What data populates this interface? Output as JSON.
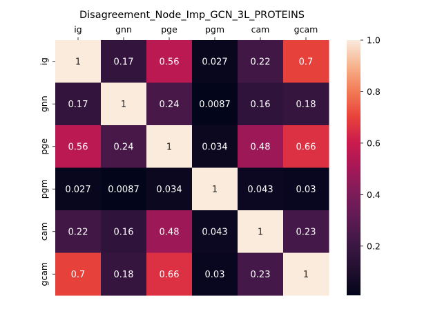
{
  "chart_data": {
    "type": "heatmap",
    "title": "Disagreement_Node_Imp_GCN_3L_PROTEINS",
    "x_labels": [
      "ig",
      "gnn",
      "pge",
      "pgm",
      "cam",
      "gcam"
    ],
    "y_labels": [
      "ig",
      "gnn",
      "pge",
      "pgm",
      "cam",
      "gcam"
    ],
    "values": [
      [
        1,
        0.17,
        0.56,
        0.027,
        0.22,
        0.7
      ],
      [
        0.17,
        1,
        0.24,
        0.0087,
        0.16,
        0.18
      ],
      [
        0.56,
        0.24,
        1,
        0.034,
        0.48,
        0.66
      ],
      [
        0.027,
        0.0087,
        0.034,
        1,
        0.043,
        0.03
      ],
      [
        0.22,
        0.16,
        0.48,
        0.043,
        1,
        0.23
      ],
      [
        0.7,
        0.18,
        0.66,
        0.03,
        0.23,
        1
      ]
    ],
    "annotations": [
      [
        "1",
        "0.17",
        "0.56",
        "0.027",
        "0.22",
        "0.7"
      ],
      [
        "0.17",
        "1",
        "0.24",
        "0.0087",
        "0.16",
        "0.18"
      ],
      [
        "0.56",
        "0.24",
        "1",
        "0.034",
        "0.48",
        "0.66"
      ],
      [
        "0.027",
        "0.0087",
        "0.034",
        "1",
        "0.043",
        "0.03"
      ],
      [
        "0.22",
        "0.16",
        "0.48",
        "0.043",
        "1",
        "0.23"
      ],
      [
        "0.7",
        "0.18",
        "0.66",
        "0.03",
        "0.23",
        "1"
      ]
    ],
    "colorbar": {
      "colormap": "rocket",
      "range": [
        0.0087,
        1
      ],
      "ticks": [
        0.2,
        0.4,
        0.6,
        0.8,
        1.0
      ],
      "tick_labels": [
        "0.2",
        "0.4",
        "0.6",
        "0.8",
        "1.0"
      ]
    },
    "x_tick_position": "top",
    "grid": false
  }
}
